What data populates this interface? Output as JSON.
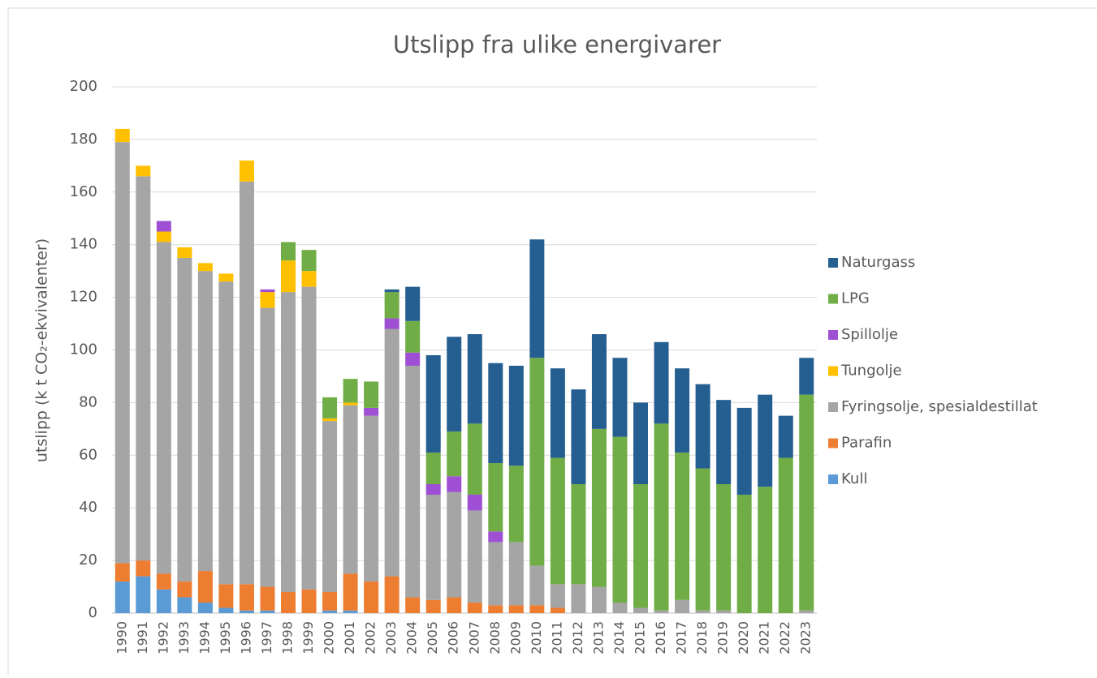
{
  "chart_data": {
    "type": "stacked_bar",
    "title": "Utslipp fra ulike energivarer",
    "y_label": "utslipp (k t CO₂-ekvivalenter)",
    "categories": [
      "1990",
      "1991",
      "1992",
      "1993",
      "1994",
      "1995",
      "1996",
      "1997",
      "1998",
      "1999",
      "2000",
      "2001",
      "2002",
      "2003",
      "2004",
      "2005",
      "2006",
      "2007",
      "2008",
      "2009",
      "2010",
      "2011",
      "2012",
      "2013",
      "2014",
      "2015",
      "2016",
      "2017",
      "2018",
      "2019",
      "2020",
      "2021",
      "2022",
      "2023"
    ],
    "series": [
      {
        "name": "Kull",
        "color": "#5b9bd5",
        "values": [
          12,
          14,
          9,
          6,
          4,
          2,
          1,
          1,
          0,
          0,
          1,
          1,
          0,
          0,
          0,
          0,
          0,
          0,
          0,
          0,
          0,
          0,
          0,
          0,
          0,
          0,
          0,
          0,
          0,
          0,
          0,
          0,
          0,
          0
        ]
      },
      {
        "name": "Parafin",
        "color": "#ed7d31",
        "values": [
          7,
          6,
          6,
          6,
          12,
          9,
          10,
          9,
          8,
          9,
          7,
          14,
          12,
          14,
          6,
          5,
          6,
          4,
          3,
          3,
          3,
          2,
          0,
          0,
          0,
          0,
          0,
          0,
          0,
          0,
          0,
          0,
          0,
          0
        ]
      },
      {
        "name": "Fyringsolje, spesialdestillat",
        "color": "#a5a5a5",
        "values": [
          160,
          146,
          126,
          123,
          114,
          115,
          153,
          106,
          114,
          115,
          65,
          64,
          63,
          94,
          88,
          40,
          40,
          35,
          24,
          24,
          15,
          9,
          11,
          10,
          4,
          2,
          1,
          5,
          1,
          1,
          0,
          0,
          0,
          1
        ]
      },
      {
        "name": "Tungolje",
        "color": "#ffc000",
        "values": [
          5,
          4,
          4,
          4,
          3,
          3,
          8,
          6,
          12,
          6,
          1,
          1,
          0,
          0,
          0,
          0,
          0,
          0,
          0,
          0,
          0,
          0,
          0,
          0,
          0,
          0,
          0,
          0,
          0,
          0,
          0,
          0,
          0,
          0
        ]
      },
      {
        "name": "Spillolje",
        "color": "#9e4fd4",
        "values": [
          0,
          0,
          4,
          0,
          0,
          0,
          0,
          1,
          0,
          0,
          0,
          0,
          3,
          4,
          5,
          4,
          6,
          6,
          4,
          0,
          0,
          0,
          0,
          0,
          0,
          0,
          0,
          0,
          0,
          0,
          0,
          0,
          0,
          0
        ]
      },
      {
        "name": "LPG",
        "color": "#70ad47",
        "values": [
          0,
          0,
          0,
          0,
          0,
          0,
          0,
          0,
          7,
          8,
          8,
          9,
          10,
          10,
          12,
          12,
          17,
          27,
          26,
          29,
          79,
          48,
          38,
          60,
          63,
          47,
          71,
          56,
          54,
          48,
          45,
          48,
          59,
          82
        ]
      },
      {
        "name": "Naturgass",
        "color": "#255e91",
        "values": [
          0,
          0,
          0,
          0,
          0,
          0,
          0,
          0,
          0,
          0,
          0,
          0,
          0,
          1,
          13,
          37,
          36,
          34,
          38,
          38,
          45,
          34,
          36,
          36,
          30,
          31,
          31,
          32,
          32,
          32,
          33,
          35,
          16,
          14
        ]
      }
    ],
    "ylim": [
      0,
      200
    ],
    "yticks": [
      0,
      20,
      40,
      60,
      80,
      100,
      120,
      140,
      160,
      180,
      200
    ],
    "grid": true,
    "legend": "right"
  }
}
